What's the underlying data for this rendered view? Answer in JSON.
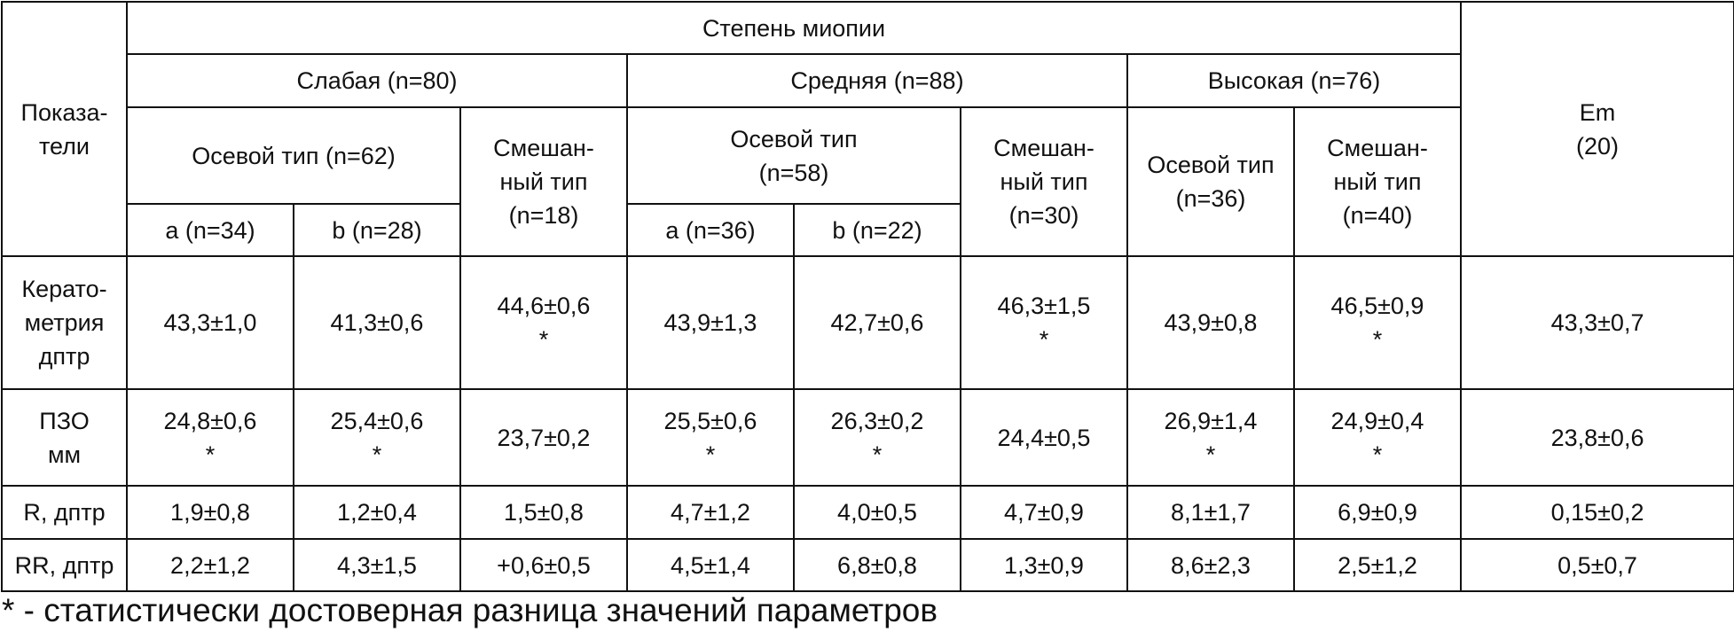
{
  "header": {
    "indicators_lines": [
      "Показа-",
      "тели"
    ],
    "myopia_degree": "Степень миопии",
    "groups": [
      {
        "label": "Слабая (n=80)"
      },
      {
        "label": "Средняя (n=88)"
      },
      {
        "label": "Высокая (n=76)"
      }
    ],
    "weak_axial": "Осевой тип (n=62)",
    "weak_mixed_lines": [
      "Смешан-",
      "ный тип",
      "(n=18)"
    ],
    "medium_axial_lines": [
      "Осевой тип",
      "(n=58)"
    ],
    "medium_mixed_lines": [
      "Смешан-",
      "ный тип",
      "(n=30)"
    ],
    "high_axial_lines": [
      "Осевой тип",
      "(n=36)"
    ],
    "high_mixed_lines": [
      "Смешан-",
      "ный тип",
      "(n=40)"
    ],
    "em_lines": [
      "Em",
      "(20)"
    ],
    "sub_a1": "a (n=34)",
    "sub_b1": "b (n=28)",
    "sub_a2": "a (n=36)",
    "sub_b2": "b (n=22)"
  },
  "rows": [
    {
      "label_lines": [
        "Керато-",
        "метрия",
        "дптр"
      ],
      "cells": [
        {
          "value": "43,3±1,0",
          "mark": ""
        },
        {
          "value": "41,3±0,6",
          "mark": ""
        },
        {
          "value": "44,6±0,6",
          "mark": "*"
        },
        {
          "value": "43,9±1,3",
          "mark": ""
        },
        {
          "value": "42,7±0,6",
          "mark": ""
        },
        {
          "value": "46,3±1,5",
          "mark": "*"
        },
        {
          "value": "43,9±0,8",
          "mark": ""
        },
        {
          "value": "46,5±0,9",
          "mark": "*"
        },
        {
          "value": "43,3±0,7",
          "mark": ""
        }
      ]
    },
    {
      "label_lines": [
        "ПЗО",
        "мм"
      ],
      "cells": [
        {
          "value": "24,8±0,6",
          "mark": "*"
        },
        {
          "value": "25,4±0,6",
          "mark": "*"
        },
        {
          "value": "23,7±0,2",
          "mark": ""
        },
        {
          "value": "25,5±0,6",
          "mark": "*"
        },
        {
          "value": "26,3±0,2",
          "mark": "*"
        },
        {
          "value": "24,4±0,5",
          "mark": ""
        },
        {
          "value": "26,9±1,4",
          "mark": "*"
        },
        {
          "value": "24,9±0,4",
          "mark": "*"
        },
        {
          "value": "23,8±0,6",
          "mark": ""
        }
      ]
    },
    {
      "label_lines": [
        "R, дптр"
      ],
      "cells": [
        {
          "value": "1,9±0,8",
          "mark": ""
        },
        {
          "value": "1,2±0,4",
          "mark": ""
        },
        {
          "value": "1,5±0,8",
          "mark": ""
        },
        {
          "value": "4,7±1,2",
          "mark": ""
        },
        {
          "value": "4,0±0,5",
          "mark": ""
        },
        {
          "value": "4,7±0,9",
          "mark": ""
        },
        {
          "value": "8,1±1,7",
          "mark": ""
        },
        {
          "value": "6,9±0,9",
          "mark": ""
        },
        {
          "value": "0,15±0,2",
          "mark": ""
        }
      ]
    },
    {
      "label_lines": [
        "RR, дптр"
      ],
      "cells": [
        {
          "value": "2,2±1,2",
          "mark": ""
        },
        {
          "value": "4,3±1,5",
          "mark": ""
        },
        {
          "value": "+0,6±0,5",
          "mark": ""
        },
        {
          "value": "4,5±1,4",
          "mark": ""
        },
        {
          "value": "6,8±0,8",
          "mark": ""
        },
        {
          "value": "1,3±0,9",
          "mark": ""
        },
        {
          "value": "8,6±2,3",
          "mark": ""
        },
        {
          "value": "2,5±1,2",
          "mark": ""
        },
        {
          "value": "0,5±0,7",
          "mark": ""
        }
      ]
    }
  ],
  "footnote": "* - статистически достоверная разница значений параметров"
}
